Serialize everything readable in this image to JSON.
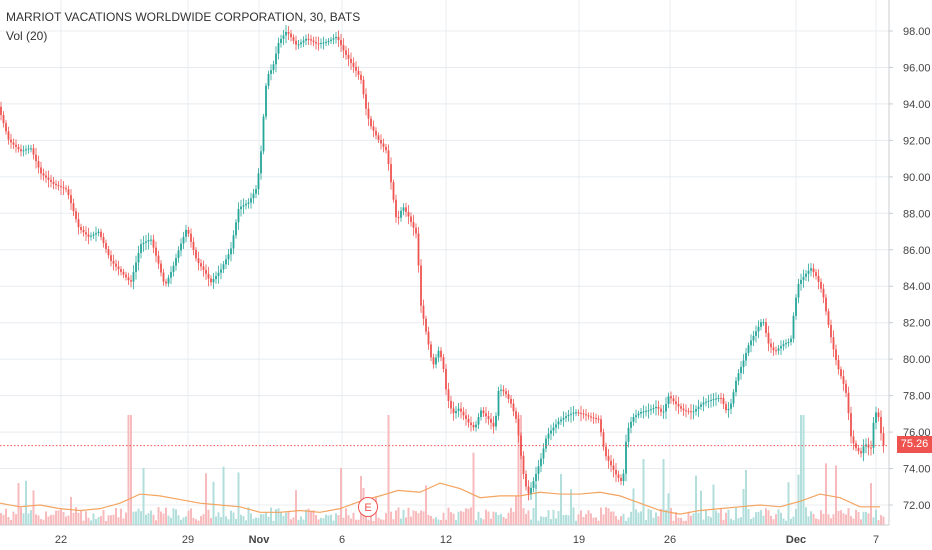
{
  "legend": {
    "title": "MARRIOT VACATIONS WORLDWIDE CORPORATION, 30, BATS",
    "volume_label": "Vol (20)"
  },
  "event_marker": "E",
  "last_price": "75.26",
  "colors": {
    "up": "#26a69a",
    "down": "#ef5350",
    "volume_up": "#b2dfdb",
    "volume_down": "#f8bbbd",
    "volume_ma": "#f4a460",
    "grid": "#e8ecf0",
    "axis_text": "#444444",
    "price_line": "#ef5350"
  },
  "chart_data": {
    "type": "candlestick",
    "title": "MARRIOT VACATIONS WORLDWIDE CORPORATION, 30, BATS",
    "interval": "30",
    "exchange": "BATS",
    "last_price": 75.26,
    "y_axis": {
      "min": 71.0,
      "max": 99.4,
      "ticks": [
        72,
        74,
        76,
        78,
        80,
        82,
        84,
        86,
        88,
        90,
        92,
        94,
        96,
        98
      ],
      "position": "right"
    },
    "x_axis_labels": [
      "22",
      "29",
      "Nov",
      "6",
      "12",
      "19",
      "26",
      "Dec",
      "7"
    ],
    "grid": true,
    "indicator": {
      "name": "Vol (20)",
      "type": "volume_with_ma",
      "ma_period": 20
    },
    "price_path": [
      [
        0,
        93.8
      ],
      [
        10,
        92.0
      ],
      [
        22,
        91.4
      ],
      [
        32,
        91.6
      ],
      [
        42,
        90.2
      ],
      [
        55,
        89.6
      ],
      [
        68,
        89.3
      ],
      [
        80,
        87.2
      ],
      [
        90,
        86.7
      ],
      [
        100,
        87.0
      ],
      [
        112,
        85.4
      ],
      [
        122,
        84.8
      ],
      [
        132,
        84.2
      ],
      [
        142,
        86.3
      ],
      [
        152,
        86.6
      ],
      [
        160,
        85.2
      ],
      [
        166,
        84.0
      ],
      [
        174,
        85.0
      ],
      [
        180,
        86.0
      ],
      [
        188,
        87.2
      ],
      [
        198,
        85.4
      ],
      [
        206,
        84.8
      ],
      [
        212,
        84.2
      ],
      [
        222,
        84.9
      ],
      [
        232,
        86.0
      ],
      [
        240,
        88.3
      ],
      [
        250,
        88.6
      ],
      [
        258,
        89.4
      ],
      [
        262,
        91.2
      ],
      [
        264,
        92.8
      ],
      [
        268,
        95.5
      ],
      [
        274,
        96.0
      ],
      [
        280,
        97.4
      ],
      [
        288,
        98.0
      ],
      [
        298,
        97.2
      ],
      [
        308,
        97.6
      ],
      [
        318,
        97.3
      ],
      [
        328,
        97.4
      ],
      [
        338,
        97.7
      ],
      [
        346,
        96.8
      ],
      [
        354,
        96.1
      ],
      [
        362,
        95.4
      ],
      [
        368,
        93.5
      ],
      [
        372,
        92.8
      ],
      [
        380,
        92.0
      ],
      [
        388,
        91.4
      ],
      [
        392,
        89.8
      ],
      [
        398,
        87.5
      ],
      [
        404,
        88.4
      ],
      [
        410,
        87.8
      ],
      [
        418,
        86.8
      ],
      [
        422,
        83.0
      ],
      [
        428,
        81.3
      ],
      [
        434,
        79.6
      ],
      [
        440,
        80.5
      ],
      [
        444,
        79.8
      ],
      [
        448,
        78.0
      ],
      [
        454,
        77.0
      ],
      [
        460,
        77.3
      ],
      [
        470,
        76.5
      ],
      [
        476,
        76.2
      ],
      [
        482,
        77.2
      ],
      [
        490,
        76.7
      ],
      [
        496,
        76.2
      ],
      [
        500,
        78.4
      ],
      [
        506,
        78.2
      ],
      [
        512,
        77.6
      ],
      [
        518,
        76.6
      ],
      [
        522,
        74.8
      ],
      [
        526,
        73.2
      ],
      [
        530,
        72.6
      ],
      [
        536,
        73.5
      ],
      [
        542,
        74.5
      ],
      [
        548,
        75.8
      ],
      [
        554,
        76.2
      ],
      [
        560,
        76.6
      ],
      [
        568,
        76.9
      ],
      [
        576,
        77.1
      ],
      [
        584,
        77.0
      ],
      [
        592,
        76.8
      ],
      [
        600,
        76.7
      ],
      [
        606,
        74.8
      ],
      [
        612,
        74.2
      ],
      [
        618,
        73.6
      ],
      [
        624,
        73.2
      ],
      [
        628,
        76.0
      ],
      [
        634,
        76.8
      ],
      [
        642,
        77.1
      ],
      [
        650,
        77.2
      ],
      [
        658,
        77.4
      ],
      [
        664,
        77.0
      ],
      [
        670,
        78.0
      ],
      [
        676,
        77.6
      ],
      [
        684,
        77.2
      ],
      [
        694,
        77.1
      ],
      [
        704,
        77.6
      ],
      [
        714,
        77.8
      ],
      [
        722,
        77.9
      ],
      [
        728,
        77.1
      ],
      [
        732,
        77.5
      ],
      [
        738,
        79.0
      ],
      [
        744,
        79.8
      ],
      [
        750,
        80.8
      ],
      [
        758,
        81.6
      ],
      [
        764,
        82.2
      ],
      [
        770,
        80.8
      ],
      [
        776,
        80.4
      ],
      [
        784,
        80.8
      ],
      [
        792,
        81.0
      ],
      [
        796,
        83.0
      ],
      [
        800,
        84.2
      ],
      [
        806,
        84.6
      ],
      [
        812,
        85.0
      ],
      [
        818,
        84.5
      ],
      [
        824,
        83.6
      ],
      [
        830,
        81.8
      ],
      [
        836,
        80.2
      ],
      [
        840,
        79.4
      ],
      [
        844,
        78.8
      ],
      [
        848,
        78.0
      ],
      [
        852,
        75.8
      ],
      [
        856,
        75.2
      ],
      [
        862,
        74.8
      ],
      [
        866,
        75.4
      ],
      [
        872,
        75.0
      ],
      [
        876,
        77.2
      ],
      [
        880,
        76.8
      ],
      [
        884,
        75.26
      ]
    ],
    "volume_ma_path": [
      [
        0,
        72.1
      ],
      [
        20,
        71.9
      ],
      [
        40,
        72.0
      ],
      [
        60,
        71.8
      ],
      [
        80,
        71.7
      ],
      [
        100,
        71.8
      ],
      [
        120,
        72.1
      ],
      [
        140,
        72.6
      ],
      [
        160,
        72.5
      ],
      [
        180,
        72.3
      ],
      [
        200,
        72.1
      ],
      [
        220,
        72.0
      ],
      [
        240,
        71.9
      ],
      [
        260,
        71.6
      ],
      [
        280,
        71.6
      ],
      [
        300,
        71.7
      ],
      [
        320,
        71.6
      ],
      [
        340,
        71.8
      ],
      [
        360,
        72.2
      ],
      [
        380,
        72.5
      ],
      [
        398,
        72.8
      ],
      [
        420,
        72.7
      ],
      [
        440,
        73.2
      ],
      [
        460,
        72.9
      ],
      [
        480,
        72.4
      ],
      [
        500,
        72.5
      ],
      [
        520,
        72.5
      ],
      [
        540,
        72.7
      ],
      [
        560,
        72.6
      ],
      [
        580,
        72.6
      ],
      [
        600,
        72.7
      ],
      [
        620,
        72.5
      ],
      [
        640,
        72.1
      ],
      [
        660,
        71.7
      ],
      [
        680,
        71.5
      ],
      [
        700,
        71.7
      ],
      [
        720,
        71.8
      ],
      [
        740,
        71.9
      ],
      [
        760,
        72.0
      ],
      [
        780,
        71.9
      ],
      [
        800,
        72.2
      ],
      [
        820,
        72.6
      ],
      [
        840,
        72.4
      ],
      [
        860,
        71.9
      ],
      [
        880,
        71.9
      ]
    ]
  }
}
